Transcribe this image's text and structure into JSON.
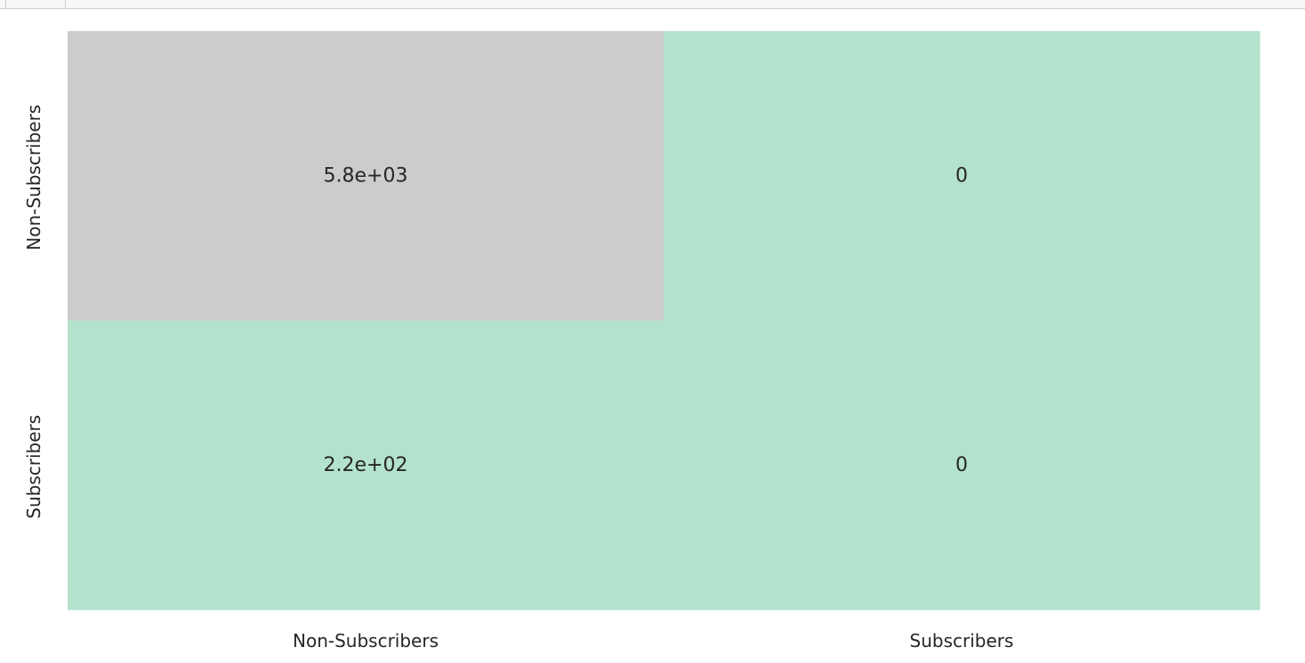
{
  "chart_data": {
    "type": "heatmap",
    "title": "",
    "xlabel": "",
    "ylabel": "",
    "x_categories": [
      "Non-Subscribers",
      "Subscribers"
    ],
    "y_categories": [
      "Non-Subscribers",
      "Subscribers"
    ],
    "cells": [
      {
        "row": 0,
        "col": 0,
        "value": 5800,
        "label": "5.8e+03",
        "color": "#cccccc"
      },
      {
        "row": 0,
        "col": 1,
        "value": 0,
        "label": "0",
        "color": "#b3e2cd"
      },
      {
        "row": 1,
        "col": 0,
        "value": 220,
        "label": "2.2e+02",
        "color": "#b3e2cd"
      },
      {
        "row": 1,
        "col": 1,
        "value": 0,
        "label": "0",
        "color": "#b3e2cd"
      }
    ],
    "colorbar": false,
    "colormap": "Pastel2"
  }
}
